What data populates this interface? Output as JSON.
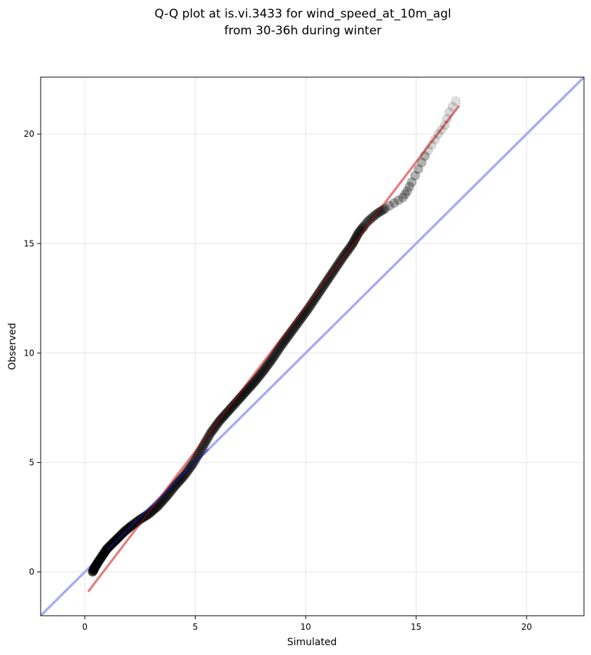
{
  "chart_data": {
    "type": "scatter",
    "title_line1": "Q-Q plot at is.vi.3433 for wind_speed_at_10m_agl",
    "title_line2": "from 30-36h during winter",
    "xlabel": "Simulated",
    "ylabel": "Observed",
    "xlim": [
      -2,
      22.6
    ],
    "ylim": [
      -2,
      22.6
    ],
    "xticks": [
      0,
      5,
      10,
      15,
      20
    ],
    "yticks": [
      0,
      5,
      10,
      15,
      20
    ],
    "xtick_labels": [
      "0",
      "5",
      "10",
      "15",
      "20"
    ],
    "ytick_labels": [
      "0",
      "5",
      "10",
      "15",
      "20"
    ],
    "grid": true,
    "reference_line": {
      "color": "#aaaaf5",
      "description": "1:1 line"
    },
    "fit_line": {
      "color": "#f4a6a6",
      "points": [
        [
          0.15,
          -0.9
        ],
        [
          16.95,
          21.3
        ]
      ]
    },
    "quantiles_sim": [
      0.35,
      0.45,
      0.6,
      0.8,
      1.0,
      1.25,
      1.5,
      1.8,
      2.1,
      2.5,
      2.9,
      3.3,
      3.7,
      4.1,
      4.5,
      4.9,
      5.3,
      5.7,
      6.1,
      6.5,
      6.9,
      7.3,
      7.7,
      8.1,
      8.5,
      8.9,
      9.3,
      9.7,
      10.1,
      10.5,
      10.9,
      11.3,
      11.7,
      12.1,
      12.4,
      12.8,
      13.2,
      13.6,
      14.0,
      14.4,
      14.6,
      14.8,
      15.1,
      15.4,
      15.7,
      16.0,
      16.3,
      16.5,
      16.8
    ],
    "quantiles_obs": [
      0.0,
      0.2,
      0.45,
      0.75,
      1.05,
      1.3,
      1.55,
      1.85,
      2.1,
      2.4,
      2.65,
      3.0,
      3.45,
      3.95,
      4.4,
      4.95,
      5.65,
      6.35,
      6.9,
      7.35,
      7.8,
      8.25,
      8.7,
      9.2,
      9.75,
      10.35,
      10.9,
      11.45,
      12.0,
      12.6,
      13.2,
      13.8,
      14.4,
      14.95,
      15.5,
      16.0,
      16.35,
      16.6,
      16.85,
      17.1,
      17.4,
      17.8,
      18.4,
      19.0,
      19.5,
      20.0,
      20.4,
      21.0,
      21.5
    ],
    "marker_color": "#000000"
  }
}
